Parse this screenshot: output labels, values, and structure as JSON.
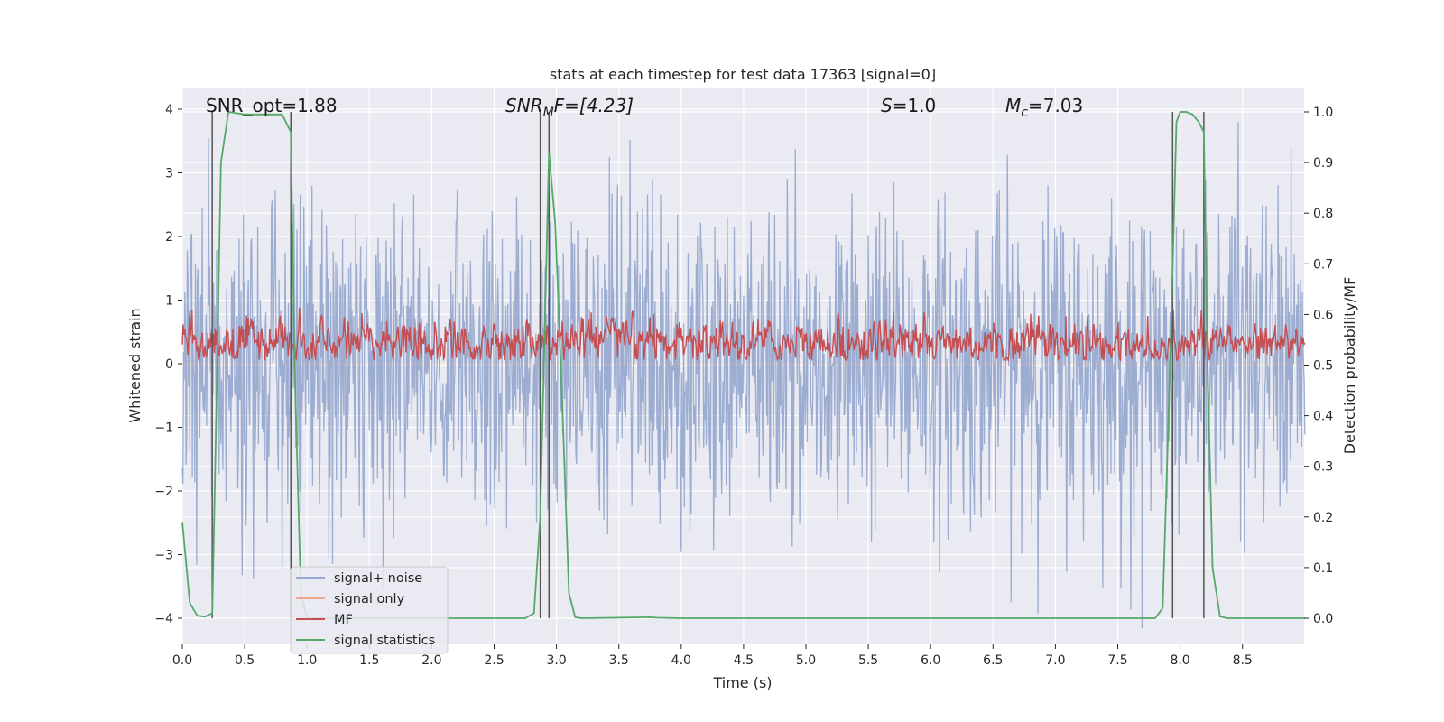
{
  "chart_data": {
    "type": "line",
    "title": "stats at each timestep for test data 17363 [signal=0]",
    "xlabel": "Time (s)",
    "ylabel_left": "Whitened strain",
    "ylabel_right": "Detection probability/MF",
    "xlim": [
      0,
      9.0
    ],
    "ylim_left": [
      -4.4,
      4.3
    ],
    "ylim_right": [
      -0.045,
      1.035
    ],
    "x_ticks": [
      "0.0",
      "0.5",
      "1.0",
      "1.5",
      "2.0",
      "2.5",
      "3.0",
      "3.5",
      "4.0",
      "4.5",
      "5.0",
      "5.5",
      "6.0",
      "6.5",
      "7.0",
      "7.5",
      "8.0",
      "8.5"
    ],
    "y_ticks_left": [
      "4",
      "3",
      "2",
      "1",
      "0",
      "−1",
      "−2",
      "−3",
      "−4"
    ],
    "y_ticks_right": [
      "1.0",
      "0.9",
      "0.8",
      "0.7",
      "0.6",
      "0.5",
      "0.4",
      "0.3",
      "0.2",
      "0.1",
      "0.0"
    ],
    "grid": true,
    "legend_position": "lower-left",
    "annotations": {
      "snr_opt": "SNR_opt=1.88",
      "snr_mf_base": "SNR",
      "snr_mf_sub": "M",
      "snr_mf_rest": "F=[4.23]",
      "s_base": "S",
      "s_rest": "=1.0",
      "mc_base": "M",
      "mc_sub": "c",
      "mc_rest": "=7.03"
    },
    "vlines_x": [
      0.24,
      0.87,
      2.87,
      2.94,
      7.94,
      8.19
    ],
    "series": [
      {
        "name": "signal+ noise",
        "color": "#98aacf",
        "amplitude_envelope": [
          -4.2,
          4.0
        ]
      },
      {
        "name": "signal only",
        "color": "#eea98c",
        "values": "flat 0"
      },
      {
        "name": "MF",
        "color": "#c44e52",
        "band": [
          0.05,
          0.95
        ]
      },
      {
        "name": "signal statistics",
        "color": "#55a868",
        "x": [
          0.0,
          0.06,
          0.12,
          0.18,
          0.24,
          0.26,
          0.31,
          0.37,
          0.5,
          0.6,
          0.8,
          0.87,
          0.9,
          0.95,
          1.0,
          1.5,
          2.0,
          2.5,
          2.75,
          2.82,
          2.87,
          2.94,
          2.99,
          3.05,
          3.1,
          3.15,
          3.2,
          3.75,
          3.8,
          4.0,
          7.8,
          7.86,
          7.92,
          7.97,
          8.0,
          8.05,
          8.1,
          8.15,
          8.19,
          8.22,
          8.26,
          8.32,
          8.38,
          9.0
        ],
        "y": [
          0.19,
          0.03,
          0.005,
          0.003,
          0.01,
          0.25,
          0.9,
          1.0,
          0.995,
          0.995,
          0.995,
          0.96,
          0.5,
          0.05,
          0.0,
          0.0,
          0.0,
          0.0,
          0.0,
          0.01,
          0.2,
          0.92,
          0.78,
          0.4,
          0.05,
          0.002,
          0.0,
          0.002,
          0.001,
          0.0,
          0.0,
          0.02,
          0.5,
          0.98,
          1.0,
          1.0,
          0.995,
          0.98,
          0.96,
          0.5,
          0.1,
          0.003,
          0.0,
          0.0
        ]
      }
    ]
  }
}
